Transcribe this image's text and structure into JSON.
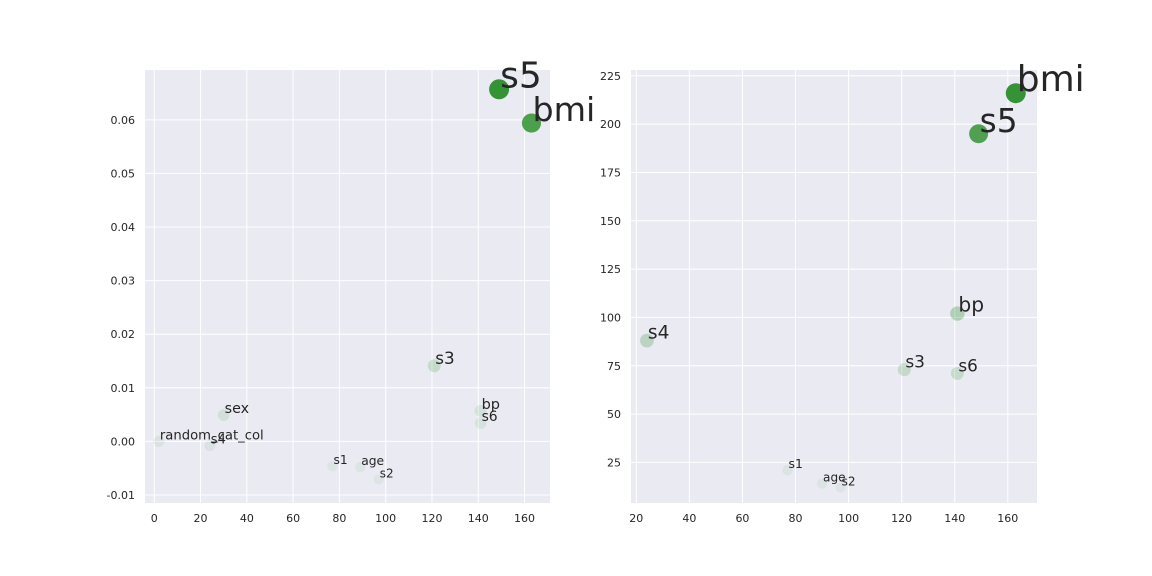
{
  "chart_data": [
    {
      "type": "scatter",
      "xlim": [
        -4,
        171
      ],
      "ylim": [
        -0.0115,
        0.0693
      ],
      "xticks": [
        0,
        20,
        40,
        60,
        80,
        100,
        120,
        140,
        160
      ],
      "yticks": [
        -0.01,
        0.0,
        0.01,
        0.02,
        0.03,
        0.04,
        0.05,
        0.06
      ],
      "ytick_labels": [
        "-0.01",
        "0.00",
        "0.01",
        "0.02",
        "0.03",
        "0.04",
        "0.05",
        "0.06"
      ],
      "grid": true,
      "points": [
        {
          "label": "s5",
          "x": 149,
          "y": 0.0657
        },
        {
          "label": "bmi",
          "x": 163,
          "y": 0.0594
        },
        {
          "label": "s3",
          "x": 121,
          "y": 0.0141
        },
        {
          "label": "bp",
          "x": 141,
          "y": 0.0057
        },
        {
          "label": "s6",
          "x": 141,
          "y": 0.0034
        },
        {
          "label": "sex",
          "x": 30,
          "y": 0.0049
        },
        {
          "label": "random_cat_col",
          "x": 2,
          "y": 0.0
        },
        {
          "label": "s4",
          "x": 24,
          "y": -0.0008
        },
        {
          "label": "s1",
          "x": 77,
          "y": -0.0046
        },
        {
          "label": "age",
          "x": 89,
          "y": -0.0048
        },
        {
          "label": "s2",
          "x": 97,
          "y": -0.0071
        }
      ]
    },
    {
      "type": "scatter",
      "xlim": [
        18,
        171
      ],
      "ylim": [
        4,
        228
      ],
      "xticks": [
        20,
        40,
        60,
        80,
        100,
        120,
        140,
        160
      ],
      "yticks": [
        25,
        50,
        75,
        100,
        125,
        150,
        175,
        200,
        225
      ],
      "ytick_labels": [
        "25",
        "50",
        "75",
        "100",
        "125",
        "150",
        "175",
        "200",
        "225"
      ],
      "grid": true,
      "points": [
        {
          "label": "bmi",
          "x": 163,
          "y": 216
        },
        {
          "label": "s5",
          "x": 149,
          "y": 195
        },
        {
          "label": "bp",
          "x": 141,
          "y": 102
        },
        {
          "label": "s3",
          "x": 121,
          "y": 73
        },
        {
          "label": "s6",
          "x": 141,
          "y": 71
        },
        {
          "label": "s4",
          "x": 24,
          "y": 88
        },
        {
          "label": "s1",
          "x": 77,
          "y": 21
        },
        {
          "label": "age",
          "x": 90,
          "y": 14
        },
        {
          "label": "s2",
          "x": 97,
          "y": 12
        }
      ]
    }
  ],
  "style": {
    "axes_bg": "#eaeaf2",
    "grid_color": "#ffffff",
    "point_color": "#228b22",
    "text_color": "#262626"
  }
}
